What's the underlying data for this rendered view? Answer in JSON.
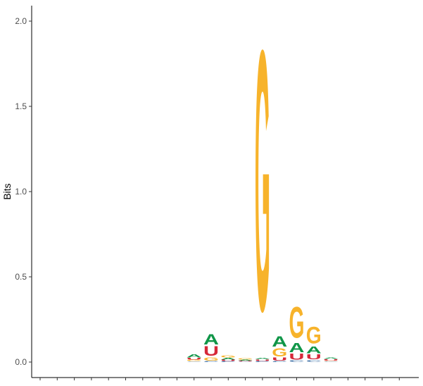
{
  "chart_data": {
    "type": "sequence-logo",
    "title": "",
    "xlabel": "",
    "ylabel": "Bits",
    "ylim": [
      0,
      2.1
    ],
    "yticks": [
      0.0,
      0.5,
      1.0,
      1.5,
      2.0
    ],
    "ytick_labels": [
      "0.0",
      "0.5",
      "1.0",
      "1.5",
      "2.0"
    ],
    "n_positions": 22,
    "grid": false,
    "legend": "none",
    "colors": {
      "A": "#109648",
      "U": "#d62839",
      "G": "#f7b32b",
      "C": "#255c99"
    },
    "positions": [
      {
        "pos": 1,
        "letters": []
      },
      {
        "pos": 2,
        "letters": []
      },
      {
        "pos": 3,
        "letters": []
      },
      {
        "pos": 4,
        "letters": []
      },
      {
        "pos": 5,
        "letters": []
      },
      {
        "pos": 6,
        "letters": []
      },
      {
        "pos": 7,
        "letters": []
      },
      {
        "pos": 8,
        "letters": []
      },
      {
        "pos": 9,
        "letters": []
      },
      {
        "pos": 10,
        "letters": [
          {
            "l": "C",
            "h": 0.004
          },
          {
            "l": "G",
            "h": 0.008
          },
          {
            "l": "U",
            "h": 0.012
          },
          {
            "l": "A",
            "h": 0.02
          }
        ]
      },
      {
        "pos": 11,
        "letters": [
          {
            "l": "C",
            "h": 0.005
          },
          {
            "l": "G",
            "h": 0.022
          },
          {
            "l": "U",
            "h": 0.065
          },
          {
            "l": "A",
            "h": 0.072
          }
        ]
      },
      {
        "pos": 12,
        "letters": [
          {
            "l": "C",
            "h": 0.005
          },
          {
            "l": "U",
            "h": 0.008
          },
          {
            "l": "A",
            "h": 0.012
          },
          {
            "l": "G",
            "h": 0.015
          }
        ]
      },
      {
        "pos": 13,
        "letters": [
          {
            "l": "C",
            "h": 0.003
          },
          {
            "l": "U",
            "h": 0.005
          },
          {
            "l": "A",
            "h": 0.006
          },
          {
            "l": "G",
            "h": 0.008
          }
        ]
      },
      {
        "pos": 14,
        "letters": [
          {
            "l": "C",
            "h": 0.005
          },
          {
            "l": "U",
            "h": 0.01
          },
          {
            "l": "A",
            "h": 0.01
          },
          {
            "l": "G",
            "h": 1.76
          }
        ]
      },
      {
        "pos": 15,
        "letters": [
          {
            "l": "C",
            "h": 0.005
          },
          {
            "l": "U",
            "h": 0.02
          },
          {
            "l": "G",
            "h": 0.055
          },
          {
            "l": "A",
            "h": 0.07
          }
        ]
      },
      {
        "pos": 16,
        "letters": [
          {
            "l": "C",
            "h": 0.008
          },
          {
            "l": "U",
            "h": 0.04
          },
          {
            "l": "A",
            "h": 0.06
          },
          {
            "l": "G",
            "h": 0.21
          }
        ]
      },
      {
        "pos": 17,
        "letters": [
          {
            "l": "C",
            "h": 0.01
          },
          {
            "l": "U",
            "h": 0.035
          },
          {
            "l": "A",
            "h": 0.045
          },
          {
            "l": "G",
            "h": 0.115
          }
        ]
      },
      {
        "pos": 18,
        "letters": [
          {
            "l": "C",
            "h": 0.004
          },
          {
            "l": "G",
            "h": 0.004
          },
          {
            "l": "U",
            "h": 0.008
          },
          {
            "l": "A",
            "h": 0.01
          }
        ]
      },
      {
        "pos": 19,
        "letters": []
      },
      {
        "pos": 20,
        "letters": []
      },
      {
        "pos": 21,
        "letters": []
      },
      {
        "pos": 22,
        "letters": []
      }
    ]
  }
}
